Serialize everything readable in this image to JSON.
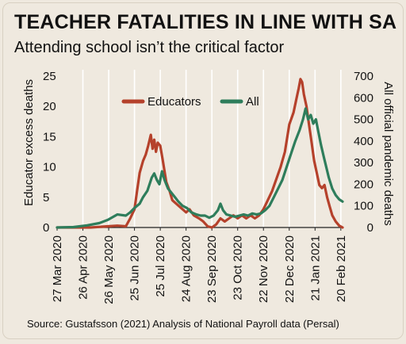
{
  "chart_data": {
    "type": "line",
    "title": "TEACHER FATALITIES IN LINE WITH SA",
    "subtitle": "Attending school isn’t the critical factor",
    "source": "Source: Gustafsson (2021) Analysis of National Payroll data (Persal)",
    "ylabel_left": "Educator excess deaths",
    "ylabel_right": "All official pandemic deaths",
    "ylim_left": [
      0,
      25
    ],
    "ylim_right": [
      0,
      700
    ],
    "yticks_left": [
      "0",
      "5",
      "10",
      "15",
      "20",
      "25"
    ],
    "yticks_right": [
      "0",
      "100",
      "200",
      "300",
      "400",
      "500",
      "600",
      "700"
    ],
    "x_tick_labels": [
      "27 Mar 2020",
      "26 Apr 2020",
      "26 May 2020",
      "25 Jun 2020",
      "25 Jul 2020",
      "24 Aug 2020",
      "23 Sep 2020",
      "23 Oct 2020",
      "22 Nov 2020",
      "22 Dec 2020",
      "21 Jan 2021",
      "20 Feb 2021"
    ],
    "grid": "vertical",
    "legend_position": "top-center",
    "series": [
      {
        "name": "Educators",
        "axis": "left",
        "color": "#b5412b",
        "points": [
          [
            "2020-03-27",
            0
          ],
          [
            "2020-04-15",
            0
          ],
          [
            "2020-05-05",
            0
          ],
          [
            "2020-05-25",
            0.2
          ],
          [
            "2020-06-05",
            0.3
          ],
          [
            "2020-06-15",
            0.2
          ],
          [
            "2020-06-20",
            1.5
          ],
          [
            "2020-06-25",
            3
          ],
          [
            "2020-06-28",
            6
          ],
          [
            "2020-07-01",
            9
          ],
          [
            "2020-07-05",
            11
          ],
          [
            "2020-07-08",
            12
          ],
          [
            "2020-07-11",
            13.5
          ],
          [
            "2020-07-14",
            15.3
          ],
          [
            "2020-07-16",
            13
          ],
          [
            "2020-07-18",
            14.5
          ],
          [
            "2020-07-20",
            12.5
          ],
          [
            "2020-07-22",
            14
          ],
          [
            "2020-07-25",
            13.5
          ],
          [
            "2020-07-28",
            11
          ],
          [
            "2020-08-01",
            7.5
          ],
          [
            "2020-08-05",
            6
          ],
          [
            "2020-08-08",
            4.5
          ],
          [
            "2020-08-12",
            4
          ],
          [
            "2020-08-16",
            3.5
          ],
          [
            "2020-08-20",
            3
          ],
          [
            "2020-08-24",
            2.5
          ],
          [
            "2020-08-28",
            3
          ],
          [
            "2020-09-02",
            2
          ],
          [
            "2020-09-08",
            1.5
          ],
          [
            "2020-09-13",
            1
          ],
          [
            "2020-09-18",
            0.2
          ],
          [
            "2020-09-23",
            0
          ],
          [
            "2020-09-28",
            0.5
          ],
          [
            "2020-10-03",
            1.5
          ],
          [
            "2020-10-08",
            1
          ],
          [
            "2020-10-13",
            1.5
          ],
          [
            "2020-10-18",
            2
          ],
          [
            "2020-10-23",
            1.5
          ],
          [
            "2020-10-28",
            2
          ],
          [
            "2020-11-02",
            1.5
          ],
          [
            "2020-11-07",
            2
          ],
          [
            "2020-11-12",
            1.5
          ],
          [
            "2020-11-17",
            2
          ],
          [
            "2020-11-22",
            3
          ],
          [
            "2020-11-27",
            4.5
          ],
          [
            "2020-12-02",
            6
          ],
          [
            "2020-12-07",
            8
          ],
          [
            "2020-12-12",
            10
          ],
          [
            "2020-12-17",
            12.5
          ],
          [
            "2020-12-22",
            17
          ],
          [
            "2020-12-27",
            19
          ],
          [
            "2020-12-30",
            21
          ],
          [
            "2021-01-02",
            23
          ],
          [
            "2021-01-04",
            24.5
          ],
          [
            "2021-01-06",
            24
          ],
          [
            "2021-01-08",
            22
          ],
          [
            "2021-01-11",
            20
          ],
          [
            "2021-01-14",
            17
          ],
          [
            "2021-01-17",
            14
          ],
          [
            "2021-01-20",
            11
          ],
          [
            "2021-01-23",
            9
          ],
          [
            "2021-01-26",
            7
          ],
          [
            "2021-01-29",
            6.5
          ],
          [
            "2021-02-01",
            7
          ],
          [
            "2021-02-04",
            5
          ],
          [
            "2021-02-07",
            3.5
          ],
          [
            "2021-02-10",
            2
          ],
          [
            "2021-02-14",
            1
          ],
          [
            "2021-02-18",
            0.3
          ],
          [
            "2021-02-22",
            0
          ]
        ]
      },
      {
        "name": "All",
        "axis": "right",
        "color": "#2e7d5b",
        "points": [
          [
            "2020-03-27",
            0
          ],
          [
            "2020-04-15",
            2
          ],
          [
            "2020-05-01",
            10
          ],
          [
            "2020-05-15",
            20
          ],
          [
            "2020-05-25",
            35
          ],
          [
            "2020-06-05",
            60
          ],
          [
            "2020-06-15",
            55
          ],
          [
            "2020-06-20",
            70
          ],
          [
            "2020-06-25",
            90
          ],
          [
            "2020-07-01",
            110
          ],
          [
            "2020-07-05",
            140
          ],
          [
            "2020-07-10",
            170
          ],
          [
            "2020-07-15",
            230
          ],
          [
            "2020-07-18",
            250
          ],
          [
            "2020-07-21",
            220
          ],
          [
            "2020-07-24",
            200
          ],
          [
            "2020-07-27",
            260
          ],
          [
            "2020-07-30",
            220
          ],
          [
            "2020-08-03",
            180
          ],
          [
            "2020-08-07",
            160
          ],
          [
            "2020-08-11",
            140
          ],
          [
            "2020-08-15",
            120
          ],
          [
            "2020-08-20",
            100
          ],
          [
            "2020-08-25",
            90
          ],
          [
            "2020-08-30",
            70
          ],
          [
            "2020-09-05",
            60
          ],
          [
            "2020-09-10",
            55
          ],
          [
            "2020-09-15",
            55
          ],
          [
            "2020-09-20",
            45
          ],
          [
            "2020-09-25",
            55
          ],
          [
            "2020-09-30",
            80
          ],
          [
            "2020-10-03",
            110
          ],
          [
            "2020-10-06",
            80
          ],
          [
            "2020-10-10",
            60
          ],
          [
            "2020-10-15",
            55
          ],
          [
            "2020-10-20",
            50
          ],
          [
            "2020-10-25",
            55
          ],
          [
            "2020-10-30",
            60
          ],
          [
            "2020-11-04",
            55
          ],
          [
            "2020-11-09",
            65
          ],
          [
            "2020-11-14",
            60
          ],
          [
            "2020-11-19",
            65
          ],
          [
            "2020-11-24",
            80
          ],
          [
            "2020-11-29",
            100
          ],
          [
            "2020-12-04",
            140
          ],
          [
            "2020-12-09",
            180
          ],
          [
            "2020-12-14",
            220
          ],
          [
            "2020-12-19",
            280
          ],
          [
            "2020-12-24",
            340
          ],
          [
            "2020-12-29",
            400
          ],
          [
            "2021-01-03",
            450
          ],
          [
            "2021-01-07",
            500
          ],
          [
            "2021-01-10",
            550
          ],
          [
            "2021-01-13",
            500
          ],
          [
            "2021-01-16",
            520
          ],
          [
            "2021-01-19",
            480
          ],
          [
            "2021-01-22",
            500
          ],
          [
            "2021-01-25",
            440
          ],
          [
            "2021-01-28",
            380
          ],
          [
            "2021-01-31",
            330
          ],
          [
            "2021-02-03",
            280
          ],
          [
            "2021-02-06",
            230
          ],
          [
            "2021-02-10",
            180
          ],
          [
            "2021-02-14",
            150
          ],
          [
            "2021-02-18",
            130
          ],
          [
            "2021-02-22",
            120
          ]
        ]
      }
    ]
  }
}
